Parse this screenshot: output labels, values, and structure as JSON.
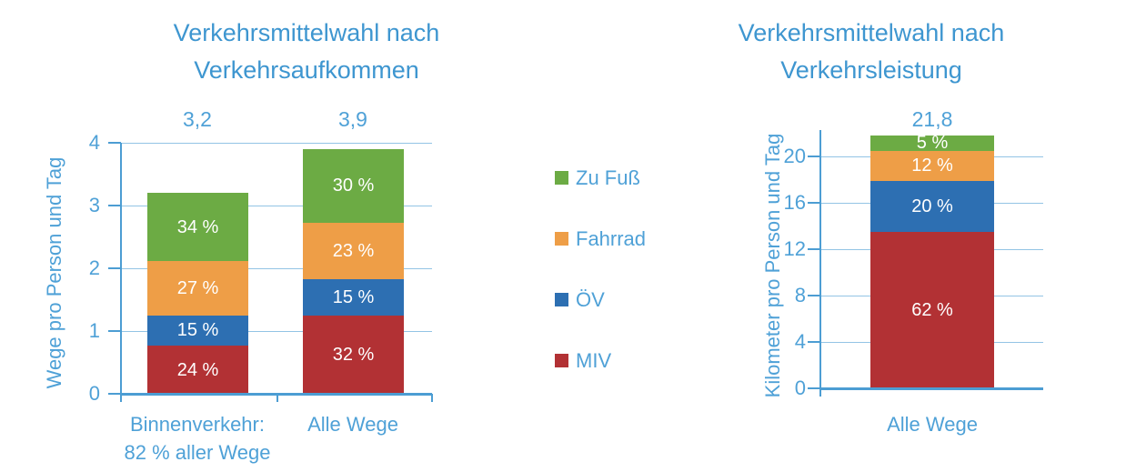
{
  "page": {
    "background": "#FFFFFF"
  },
  "colors": {
    "title_text": "#3E96D0",
    "axis_text": "#4FA1D7",
    "axis_line": "#4C9DD3",
    "gridline": "#93C4E5",
    "bar_label_text": "#FFFFFF"
  },
  "legend": {
    "position": "center-between-charts",
    "items": [
      {
        "label": "Zu Fuß",
        "color": "#6CAB44"
      },
      {
        "label": "Fahrrad",
        "color": "#EE9E47"
      },
      {
        "label": "ÖV",
        "color": "#2D6FB2"
      },
      {
        "label": "MIV",
        "color": "#B23134"
      }
    ]
  },
  "chart_data": [
    {
      "type": "bar",
      "stacked": true,
      "title_lines": [
        "Verkehrsmittelwahl nach",
        "Verkehrsaufkommen"
      ],
      "ylabel": "Wege pro Person und Tag",
      "ylim": [
        0,
        4
      ],
      "grid": true,
      "yticks": [
        {
          "v": 0,
          "label": "0"
        },
        {
          "v": 1,
          "label": "1"
        },
        {
          "v": 2,
          "label": "2"
        },
        {
          "v": 3,
          "label": "3"
        },
        {
          "v": 4,
          "label": "4"
        }
      ],
      "categories": [
        {
          "lines": [
            "Binnenverkehr:",
            "82 % aller Wege"
          ],
          "total": 3.2,
          "total_label": "3,2"
        },
        {
          "lines": [
            "Alle Wege"
          ],
          "total": 3.9,
          "total_label": "3,9"
        }
      ],
      "series": [
        {
          "name": "MIV",
          "color": "#B23134",
          "percents": [
            24,
            32
          ],
          "labels": [
            "24 %",
            "32 %"
          ]
        },
        {
          "name": "ÖV",
          "color": "#2D6FB2",
          "percents": [
            15,
            15
          ],
          "labels": [
            "15 %",
            "15 %"
          ]
        },
        {
          "name": "Fahrrad",
          "color": "#EE9E47",
          "percents": [
            27,
            23
          ],
          "labels": [
            "27 %",
            "23 %"
          ]
        },
        {
          "name": "Zu Fuß",
          "color": "#6CAB44",
          "percents": [
            34,
            30
          ],
          "labels": [
            "34 %",
            "30 %"
          ]
        }
      ]
    },
    {
      "type": "bar",
      "stacked": true,
      "title_lines": [
        "Verkehrsmittelwahl nach",
        "Verkehrsleistung"
      ],
      "ylabel": "Kilometer pro Person und Tag",
      "ylim": [
        0,
        22.3
      ],
      "grid": true,
      "yticks": [
        {
          "v": 0,
          "label": "0"
        },
        {
          "v": 4,
          "label": "4"
        },
        {
          "v": 8,
          "label": "8"
        },
        {
          "v": 12,
          "label": "12"
        },
        {
          "v": 16,
          "label": "16"
        },
        {
          "v": 20,
          "label": "20"
        }
      ],
      "categories": [
        {
          "lines": [
            "Alle Wege"
          ],
          "total": 21.8,
          "total_label": "21,8"
        }
      ],
      "series": [
        {
          "name": "MIV",
          "color": "#B23134",
          "percents": [
            62
          ],
          "labels": [
            "62 %"
          ]
        },
        {
          "name": "ÖV",
          "color": "#2D6FB2",
          "percents": [
            20
          ],
          "labels": [
            "20 %"
          ]
        },
        {
          "name": "Fahrrad",
          "color": "#EE9E47",
          "percents": [
            12
          ],
          "labels": [
            "12 %"
          ]
        },
        {
          "name": "Zu Fuß",
          "color": "#6CAB44",
          "percents": [
            5
          ],
          "labels": [
            "5 %"
          ]
        }
      ]
    }
  ]
}
